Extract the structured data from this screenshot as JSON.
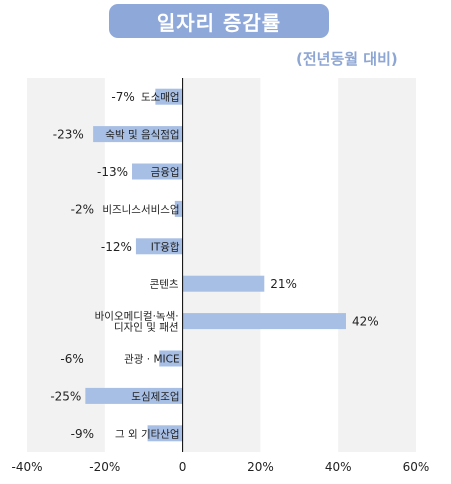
{
  "header": {
    "title": "일자리 증감률",
    "subtitle": "(전년동월 대비)"
  },
  "colors": {
    "bar": "#a7bfe4",
    "title_bg": "#8fa8da",
    "title_text": "#ffffff",
    "subtitle_text": "#8da6d4",
    "band_shade": "#f2f2f2",
    "zero_line": "#000000"
  },
  "chart_data": {
    "type": "bar",
    "orientation": "horizontal",
    "title": "일자리 증감률",
    "subtitle": "(전년동월 대비)",
    "xlabel": "",
    "ylabel": "",
    "xlim": [
      -40,
      60
    ],
    "x_ticks": [
      "-40%",
      "-20%",
      "0",
      "20%",
      "40%",
      "60%"
    ],
    "x_tick_values": [
      -40,
      -20,
      0,
      20,
      40,
      60
    ],
    "grid": "alternating shaded vertical bands, no gridlines",
    "legend": "none",
    "categories": [
      "도소매업",
      "숙박 및 음식점업",
      "금융업",
      "비즈니스서비스업",
      "IT융합",
      "콘텐츠",
      "바이오메디컬·녹색·\n디자인 및 패션",
      "관광 · MICE",
      "도심제조업",
      "그 외 기타산업"
    ],
    "values": [
      -7,
      -23,
      -13,
      -2,
      -12,
      21,
      42,
      -6,
      -25,
      -9
    ],
    "value_labels": [
      "-7%",
      "-23%",
      "-13%",
      "-2%",
      "-12%",
      "21%",
      "42%",
      "-6%",
      "-25%",
      "-9%"
    ]
  }
}
